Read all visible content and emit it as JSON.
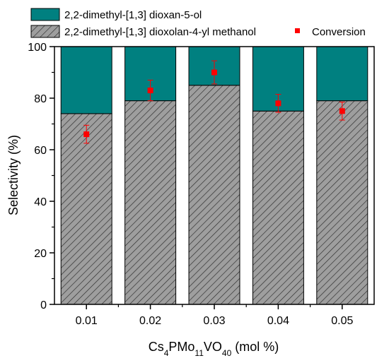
{
  "chart_data": {
    "type": "bar",
    "stacked": true,
    "categories": [
      "0.01",
      "0.02",
      "0.03",
      "0.04",
      "0.05"
    ],
    "series": [
      {
        "name": "2,2-dimethyl-[1,3] dioxolan-4-yl methanol",
        "values": [
          74,
          79,
          85,
          75,
          79
        ],
        "color": "#9e9e9e",
        "pattern": "diagonal-hatch"
      },
      {
        "name": "2,2-dimethyl-[1,3] dioxan-5-ol",
        "values": [
          26,
          21,
          15,
          25,
          21
        ],
        "color": "#008080"
      }
    ],
    "conversion": {
      "name": "Conversion",
      "values": [
        66,
        83,
        90,
        78,
        75
      ],
      "errors": [
        3.5,
        4,
        4.5,
        3.5,
        3.5
      ],
      "color": "#ff0000"
    },
    "ylabel": "Selectivity (%)",
    "xlabel": {
      "parts": [
        {
          "text": "Cs"
        },
        {
          "text": "4",
          "sub": true
        },
        {
          "text": "PMo"
        },
        {
          "text": "11",
          "sub": true
        },
        {
          "text": "VO"
        },
        {
          "text": "40",
          "sub": true
        },
        {
          "text": " (mol %)"
        }
      ]
    },
    "ylim": [
      0,
      100
    ],
    "yticks": [
      "0",
      "20",
      "40",
      "60",
      "80",
      "100"
    ],
    "grid": false,
    "legend": "top"
  }
}
